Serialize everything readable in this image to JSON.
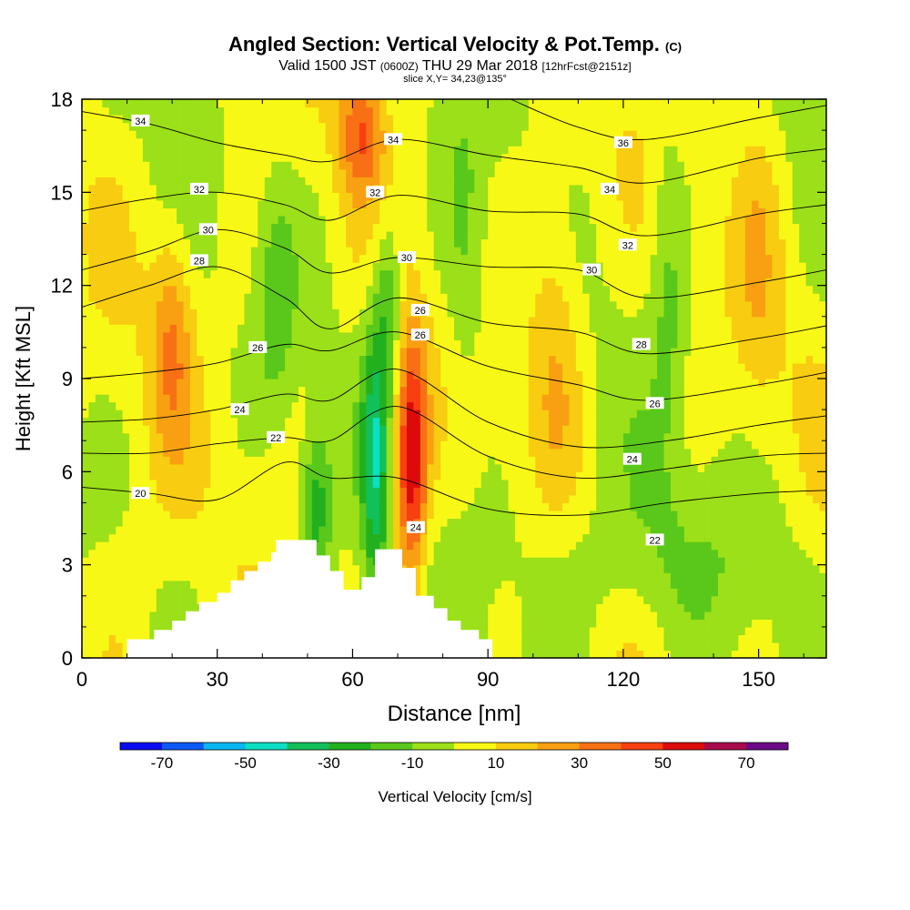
{
  "title": {
    "main": "Angled Section: Vertical Velocity & Pot.Temp.",
    "main_tag": "(C)",
    "valid_pre": "Valid 1500 JST",
    "valid_utc": "(0600Z)",
    "valid_date": "THU 29 Mar 2018",
    "forecast": "[12hrFcst@2151z]",
    "slice": "slice X,Y= 34,23@135°"
  },
  "chart_data": {
    "type": "heatmap",
    "xlabel": "Distance [nm]",
    "ylabel": "Height [Kft MSL]",
    "xlim": [
      0,
      165
    ],
    "ylim": [
      0,
      18
    ],
    "xticks": [
      0,
      30,
      60,
      90,
      120,
      150
    ],
    "yticks": [
      0,
      3,
      6,
      9,
      12,
      15,
      18
    ],
    "colorbar": {
      "label": "Vertical Velocity [cm/s]",
      "tick_labels": [
        -70,
        -50,
        -30,
        -10,
        10,
        30,
        50,
        70
      ],
      "bins": [
        -80,
        -70,
        -60,
        -50,
        -40,
        -30,
        -20,
        -10,
        0,
        10,
        20,
        30,
        40,
        50,
        60,
        70,
        80
      ],
      "colors": [
        "#0b0bf0",
        "#0b5af5",
        "#08b7f0",
        "#0ce0c4",
        "#12c05a",
        "#22b01e",
        "#5ac81a",
        "#9be018",
        "#f8f816",
        "#f8cc10",
        "#f8a012",
        "#f87014",
        "#f83f10",
        "#dc0a0a",
        "#a80a4a",
        "#6a0a86"
      ]
    },
    "terrain_kft": [
      [
        0,
        0
      ],
      [
        10,
        0
      ],
      [
        10,
        0.6
      ],
      [
        16,
        0.6
      ],
      [
        16,
        0.9
      ],
      [
        20,
        0.9
      ],
      [
        20,
        1.2
      ],
      [
        23,
        1.2
      ],
      [
        23,
        1.5
      ],
      [
        26,
        1.5
      ],
      [
        26,
        1.8
      ],
      [
        30,
        1.8
      ],
      [
        30,
        2.1
      ],
      [
        33,
        2.1
      ],
      [
        33,
        2.5
      ],
      [
        36,
        2.5
      ],
      [
        36,
        2.8
      ],
      [
        39,
        2.8
      ],
      [
        39,
        3.1
      ],
      [
        42,
        3.1
      ],
      [
        42,
        3.4
      ],
      [
        43,
        3.4
      ],
      [
        43,
        3.8
      ],
      [
        52,
        3.8
      ],
      [
        52,
        3.3
      ],
      [
        55,
        3.3
      ],
      [
        55,
        2.8
      ],
      [
        58,
        2.8
      ],
      [
        58,
        2.2
      ],
      [
        62,
        2.2
      ],
      [
        62,
        2.6
      ],
      [
        65,
        2.6
      ],
      [
        65,
        3.5
      ],
      [
        71,
        3.5
      ],
      [
        71,
        2.9
      ],
      [
        74,
        2.9
      ],
      [
        74,
        2.0
      ],
      [
        78,
        2.0
      ],
      [
        78,
        1.6
      ],
      [
        81,
        1.6
      ],
      [
        81,
        1.2
      ],
      [
        84,
        1.2
      ],
      [
        84,
        0.9
      ],
      [
        88,
        0.9
      ],
      [
        88,
        0.6
      ],
      [
        91,
        0.6
      ],
      [
        91,
        0
      ],
      [
        165,
        0
      ]
    ],
    "theta_contours": [
      {
        "label": "20",
        "label_at": [
          13,
          5.3
        ],
        "points": [
          [
            0,
            5.5
          ],
          [
            15,
            5.3
          ],
          [
            30,
            5.1
          ],
          [
            45,
            6.3
          ],
          [
            55,
            5.8
          ],
          [
            70,
            5.8
          ],
          [
            90,
            4.8
          ],
          [
            110,
            4.6
          ],
          [
            130,
            5.0
          ],
          [
            150,
            5.3
          ],
          [
            165,
            5.4
          ]
        ]
      },
      {
        "label": "22",
        "label_at": [
          43,
          7.1
        ],
        "points": [
          [
            0,
            6.6
          ],
          [
            15,
            6.6
          ],
          [
            30,
            6.9
          ],
          [
            45,
            7.1
          ],
          [
            55,
            7.0
          ],
          [
            70,
            8.1
          ],
          [
            90,
            6.5
          ],
          [
            110,
            5.8
          ],
          [
            130,
            6.1
          ],
          [
            150,
            6.5
          ],
          [
            165,
            6.6
          ]
        ]
      },
      {
        "label": "24",
        "label_at": [
          35,
          8.0
        ],
        "points": [
          [
            0,
            7.6
          ],
          [
            15,
            7.7
          ],
          [
            30,
            8.0
          ],
          [
            45,
            8.5
          ],
          [
            55,
            8.3
          ],
          [
            70,
            9.3
          ],
          [
            90,
            7.6
          ],
          [
            110,
            6.8
          ],
          [
            130,
            7.0
          ],
          [
            150,
            7.5
          ],
          [
            165,
            7.8
          ]
        ]
      },
      {
        "label": "26",
        "label_at": [
          39,
          10.0
        ],
        "points": [
          [
            0,
            9.0
          ],
          [
            15,
            9.2
          ],
          [
            30,
            9.5
          ],
          [
            45,
            10.1
          ],
          [
            55,
            9.9
          ],
          [
            70,
            10.5
          ],
          [
            90,
            9.4
          ],
          [
            110,
            8.8
          ],
          [
            125,
            8.3
          ],
          [
            150,
            8.8
          ],
          [
            165,
            9.2
          ]
        ]
      },
      {
        "label": "28",
        "label_at": [
          26,
          12.8
        ],
        "points": [
          [
            0,
            11.3
          ],
          [
            15,
            12.0
          ],
          [
            30,
            12.6
          ],
          [
            45,
            11.6
          ],
          [
            55,
            10.6
          ],
          [
            70,
            11.6
          ],
          [
            90,
            10.8
          ],
          [
            110,
            10.5
          ],
          [
            125,
            9.8
          ],
          [
            150,
            10.3
          ],
          [
            165,
            10.7
          ]
        ]
      },
      {
        "label": "30",
        "label_at": [
          28,
          13.8
        ],
        "points": [
          [
            0,
            12.5
          ],
          [
            15,
            13.1
          ],
          [
            30,
            13.8
          ],
          [
            45,
            13.2
          ],
          [
            55,
            12.4
          ],
          [
            70,
            12.9
          ],
          [
            90,
            12.6
          ],
          [
            110,
            12.5
          ],
          [
            125,
            11.6
          ],
          [
            150,
            12.1
          ],
          [
            165,
            12.5
          ]
        ]
      },
      {
        "label": "32",
        "label_at": [
          26,
          15.1
        ],
        "points": [
          [
            0,
            14.4
          ],
          [
            15,
            14.8
          ],
          [
            30,
            15.0
          ],
          [
            45,
            14.6
          ],
          [
            55,
            14.1
          ],
          [
            70,
            14.9
          ],
          [
            90,
            14.4
          ],
          [
            110,
            14.3
          ],
          [
            125,
            13.6
          ],
          [
            150,
            14.3
          ],
          [
            165,
            14.6
          ]
        ]
      },
      {
        "label": "34",
        "label_at": [
          13,
          17.3
        ],
        "points": [
          [
            0,
            17.6
          ],
          [
            15,
            17.2
          ],
          [
            30,
            16.6
          ],
          [
            45,
            16.2
          ],
          [
            55,
            16.0
          ],
          [
            70,
            16.7
          ],
          [
            90,
            16.2
          ],
          [
            110,
            15.8
          ],
          [
            125,
            15.3
          ],
          [
            150,
            16.1
          ],
          [
            165,
            16.4
          ]
        ]
      },
      {
        "label": "36",
        "label_at": [
          120,
          16.6
        ],
        "points": [
          [
            95,
            18.0
          ],
          [
            110,
            17.1
          ],
          [
            125,
            16.7
          ],
          [
            150,
            17.4
          ],
          [
            165,
            17.8
          ]
        ]
      }
    ],
    "theta_labels": [
      {
        "label": "34",
        "at": [
          69,
          16.7
        ]
      },
      {
        "label": "32",
        "at": [
          65,
          15.0
        ]
      },
      {
        "label": "34",
        "at": [
          117,
          15.1
        ]
      },
      {
        "label": "30",
        "at": [
          72,
          12.9
        ]
      },
      {
        "label": "32",
        "at": [
          121,
          13.3
        ]
      },
      {
        "label": "26",
        "at": [
          75,
          11.2
        ]
      },
      {
        "label": "30",
        "at": [
          113,
          12.5
        ]
      },
      {
        "label": "26",
        "at": [
          75,
          10.4
        ]
      },
      {
        "label": "28",
        "at": [
          124,
          10.1
        ]
      },
      {
        "label": "26",
        "at": [
          127,
          8.2
        ]
      },
      {
        "label": "24",
        "at": [
          122,
          6.4
        ]
      },
      {
        "label": "24",
        "at": [
          74,
          4.2
        ]
      },
      {
        "label": "22",
        "at": [
          127,
          3.8
        ]
      }
    ],
    "velocity_features": [
      {
        "x": 73,
        "y": 6.3,
        "rx": 3.5,
        "ry": 4.0,
        "w": 58,
        "note": "updraft core"
      },
      {
        "x": 65,
        "y": 6.3,
        "rx": 3.0,
        "ry": 5.0,
        "w": -33
      },
      {
        "x": 52,
        "y": 4.8,
        "rx": 3.5,
        "ry": 2.6,
        "w": -30
      },
      {
        "x": 68,
        "y": 11.6,
        "rx": 3.0,
        "ry": 3.0,
        "w": -22
      },
      {
        "x": 62,
        "y": 17.0,
        "rx": 5.0,
        "ry": 2.0,
        "w": 32
      },
      {
        "x": 20,
        "y": 10.5,
        "rx": 4.5,
        "ry": 3.5,
        "w": 24
      },
      {
        "x": 43,
        "y": 11.5,
        "rx": 4.0,
        "ry": 3.5,
        "w": -16
      },
      {
        "x": 105,
        "y": 11.0,
        "rx": 6.0,
        "ry": 5.0,
        "w": 18
      },
      {
        "x": 85,
        "y": 13.0,
        "rx": 5.0,
        "ry": 5.0,
        "w": -14
      },
      {
        "x": 130,
        "y": 12.0,
        "rx": 4.0,
        "ry": 6.0,
        "w": -14
      },
      {
        "x": 150,
        "y": 12.5,
        "rx": 5.0,
        "ry": 6.0,
        "w": 10
      },
      {
        "x": 120,
        "y": 3.0,
        "rx": 30.0,
        "ry": 3.0,
        "w": -12
      },
      {
        "x": 10,
        "y": 2.0,
        "rx": 10.0,
        "ry": 4.0,
        "w": 6
      }
    ]
  }
}
